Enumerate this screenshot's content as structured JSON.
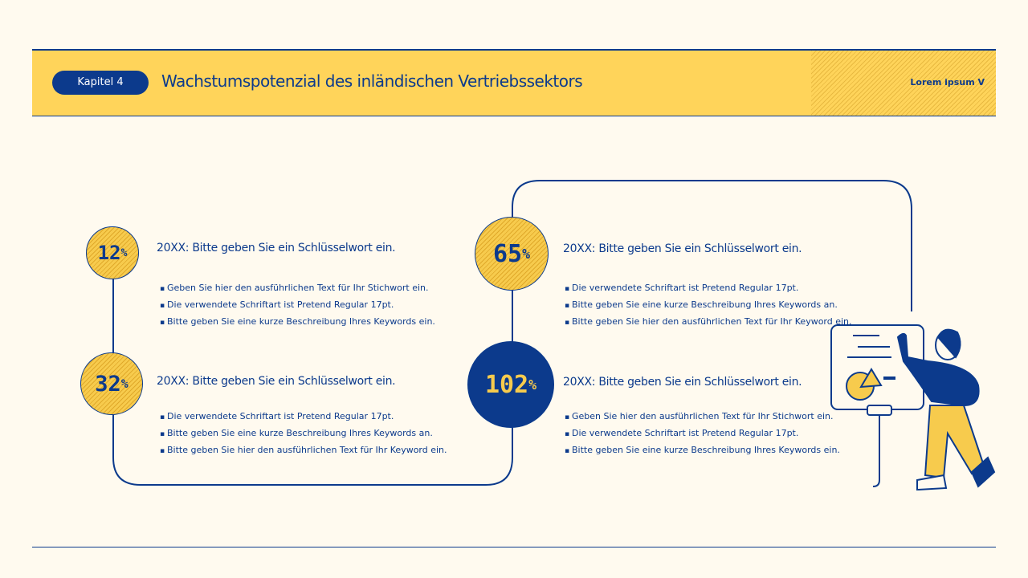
{
  "header": {
    "chapter": "Kapitel 4",
    "title": "Wachstumspotenzial des inländischen Vertriebssektors",
    "tag": "Lorem ipsum V"
  },
  "colors": {
    "navy": "#0c3a8c",
    "yellow": "#ffd45a",
    "background": "#fffaef"
  },
  "items": [
    {
      "value": "12",
      "unit": "%",
      "heading": "20XX: Bitte geben Sie ein Schlüsselwort ein.",
      "bullets": [
        "Geben Sie hier den ausführlichen Text für Ihr Stichwort ein.",
        "Die verwendete Schriftart ist Pretend Regular 17pt.",
        "Bitte geben Sie eine kurze Beschreibung Ihres Keywords ein."
      ]
    },
    {
      "value": "32",
      "unit": "%",
      "heading": "20XX: Bitte geben Sie ein Schlüsselwort ein.",
      "bullets": [
        "Die verwendete Schriftart ist Pretend Regular 17pt.",
        "Bitte geben Sie eine kurze Beschreibung Ihres Keywords an.",
        "Bitte geben Sie hier den ausführlichen Text für Ihr Keyword ein."
      ]
    },
    {
      "value": "65",
      "unit": "%",
      "heading": "20XX: Bitte geben Sie ein Schlüsselwort ein.",
      "bullets": [
        "Die verwendete Schriftart ist Pretend Regular 17pt.",
        "Bitte geben Sie eine kurze Beschreibung Ihres Keywords an.",
        "Bitte geben Sie hier den ausführlichen Text für Ihr Keyword ein."
      ]
    },
    {
      "value": "102",
      "unit": "%",
      "heading": "20XX: Bitte geben Sie ein Schlüsselwort ein.",
      "bullets": [
        "Geben Sie hier den ausführlichen Text für Ihr Stichwort ein.",
        "Die verwendete Schriftart ist Pretend Regular 17pt.",
        "Bitte geben Sie eine kurze Beschreibung Ihres Keywords ein."
      ]
    }
  ]
}
